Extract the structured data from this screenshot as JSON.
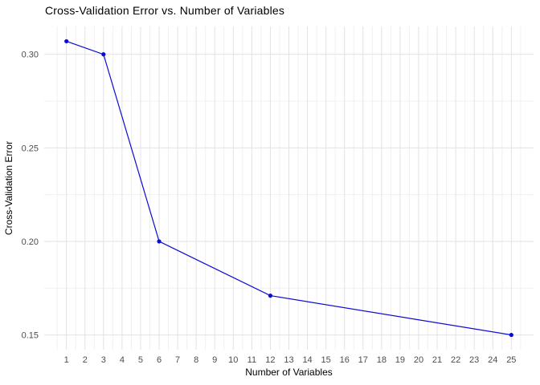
{
  "chart_data": {
    "type": "line",
    "title": "Cross-Validation Error vs. Number of Variables",
    "xlabel": "Number of Variables",
    "ylabel": "Cross-Validation Error",
    "x": [
      1,
      3,
      6,
      12,
      25
    ],
    "y": [
      0.307,
      0.3,
      0.2,
      0.171,
      0.15
    ],
    "x_ticks": [
      1,
      2,
      3,
      4,
      5,
      6,
      7,
      8,
      9,
      10,
      11,
      12,
      13,
      14,
      15,
      16,
      17,
      18,
      19,
      20,
      21,
      22,
      23,
      24,
      25
    ],
    "y_ticks": [
      0.15,
      0.2,
      0.25,
      0.3
    ],
    "y_tick_labels": [
      "0.15",
      "0.20",
      "0.25",
      "0.30"
    ],
    "x_minor_step": 0.5,
    "y_minor_ticks": [
      0.175,
      0.225,
      0.275
    ],
    "xlim": [
      -0.2,
      26.2
    ],
    "ylim": [
      0.1421,
      0.3149
    ],
    "grid": true,
    "legend_position": "none",
    "line_color": "#0b0bd6",
    "point_color": "#0b0bd6",
    "grid_major_color": "#e2e2e2",
    "grid_minor_color": "#f0f0f0",
    "axis_text_color": "#4d4d4d",
    "axis_title_color": "#000000"
  }
}
